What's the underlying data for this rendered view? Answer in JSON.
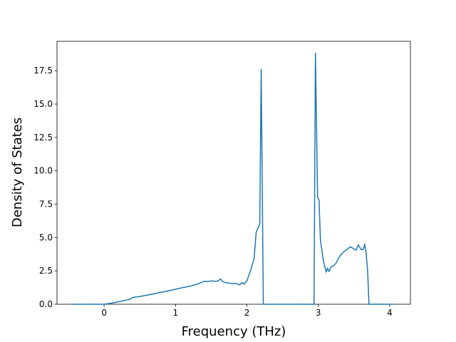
{
  "chart_data": {
    "type": "line",
    "x_label": "Frequency (THz)",
    "y_label": "Density of States",
    "x": [
      -0.44,
      0,
      0.1,
      0.2,
      0.3,
      0.35,
      0.4,
      0.45,
      0.5,
      0.6,
      0.7,
      0.8,
      0.9,
      1.0,
      1.1,
      1.2,
      1.3,
      1.35,
      1.4,
      1.45,
      1.5,
      1.55,
      1.6,
      1.63,
      1.66,
      1.7,
      1.8,
      1.85,
      1.9,
      1.93,
      1.96,
      2.0,
      2.05,
      2.1,
      2.13,
      2.18,
      2.2,
      2.23,
      2.94,
      2.96,
      2.99,
      3.01,
      3.03,
      3.07,
      3.11,
      3.13,
      3.15,
      3.18,
      3.22,
      3.25,
      3.3,
      3.35,
      3.4,
      3.45,
      3.5,
      3.53,
      3.56,
      3.6,
      3.63,
      3.65,
      3.67,
      3.69,
      3.71,
      4.05
    ],
    "series": [
      {
        "color": "#1f77b4",
        "values": [
          0,
          0,
          0.08,
          0.18,
          0.3,
          0.35,
          0.5,
          0.55,
          0.58,
          0.68,
          0.78,
          0.9,
          1.0,
          1.12,
          1.25,
          1.35,
          1.5,
          1.6,
          1.72,
          1.7,
          1.75,
          1.72,
          1.75,
          1.9,
          1.7,
          1.62,
          1.55,
          1.55,
          1.45,
          1.62,
          1.5,
          1.75,
          2.5,
          3.4,
          5.4,
          6.0,
          17.6,
          0,
          0,
          18.8,
          8.0,
          7.8,
          4.8,
          3.3,
          2.4,
          2.7,
          2.45,
          2.8,
          2.9,
          3.1,
          3.6,
          3.9,
          4.1,
          4.3,
          4.15,
          4.05,
          4.45,
          4.1,
          4.1,
          4.5,
          3.8,
          2.6,
          0,
          0
        ]
      }
    ],
    "xlim": [
      -0.66,
      4.29
    ],
    "xticks": [
      0,
      1,
      2,
      3,
      4
    ],
    "ylim": [
      0,
      19.7
    ],
    "yticks": [
      {
        "value": 0,
        "label": "0.0"
      },
      2.5,
      {
        "value": 5,
        "label": "5.0"
      },
      7.5,
      {
        "value": 10,
        "label": "10.0"
      },
      12.5,
      {
        "value": 15,
        "label": "15.0"
      },
      17.5
    ]
  }
}
